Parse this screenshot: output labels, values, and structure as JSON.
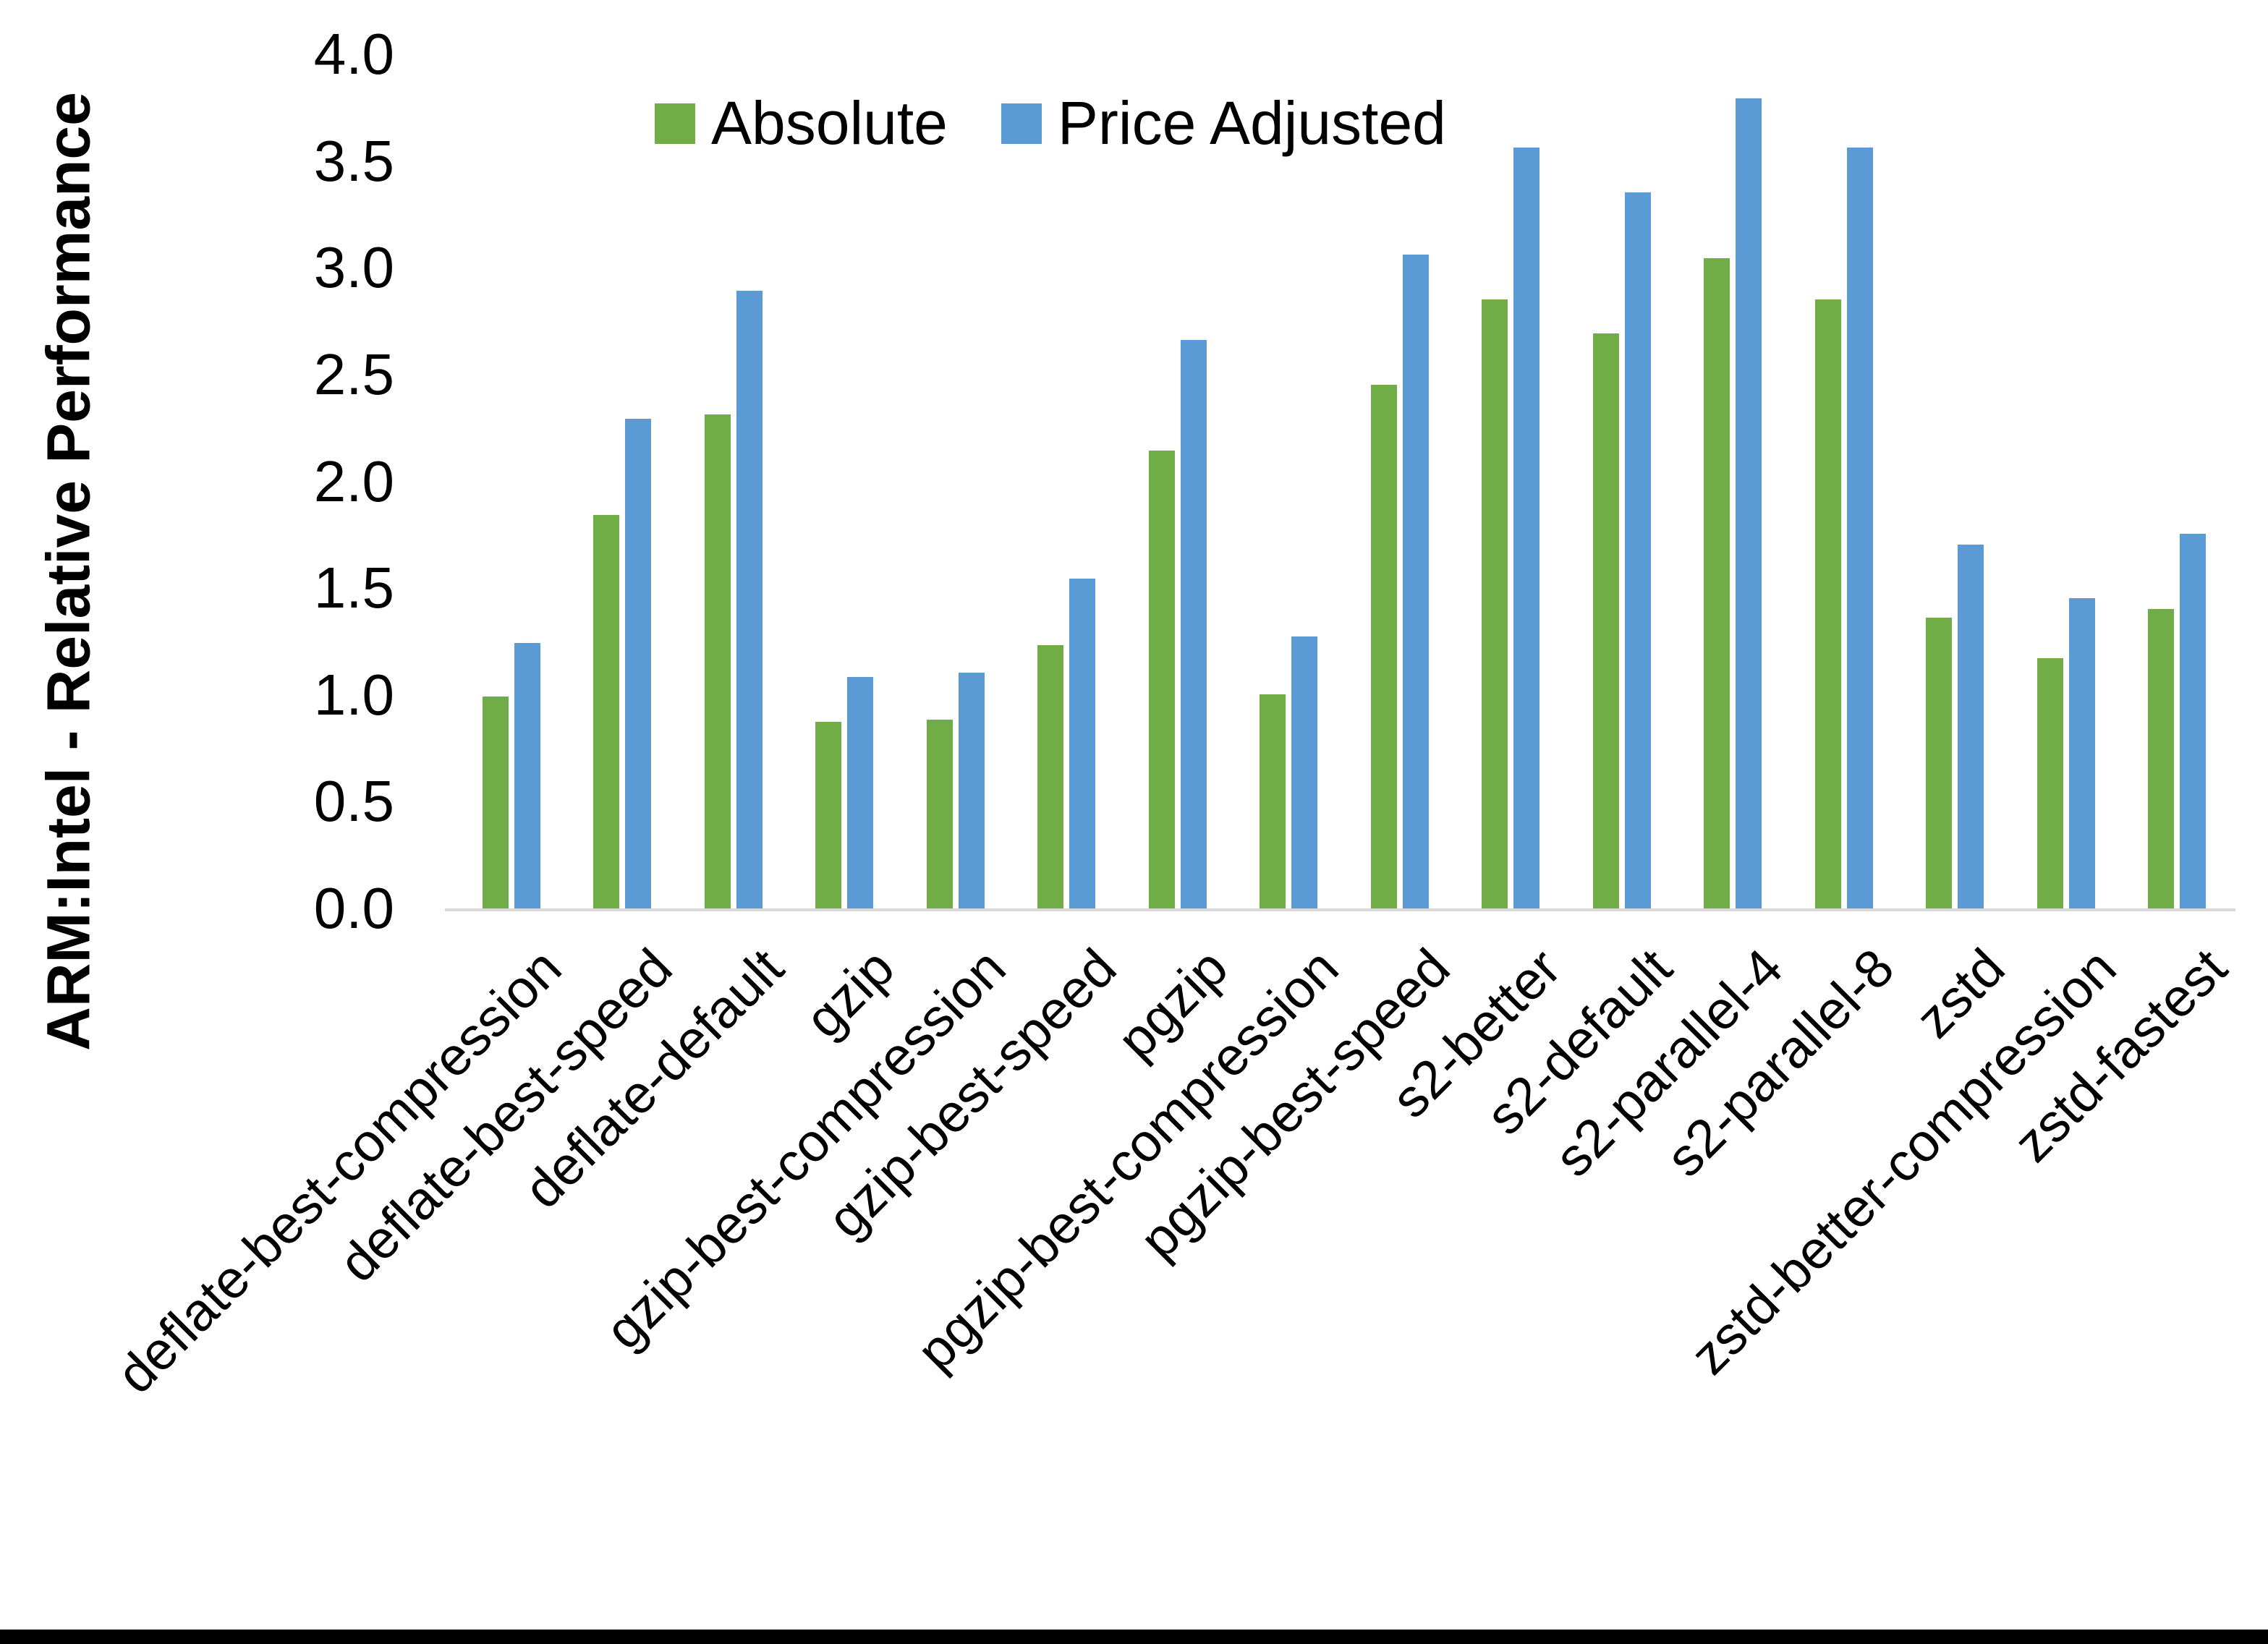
{
  "chart_data": {
    "type": "bar",
    "title": "",
    "ylabel": "ARM:Intel - Relative Performance",
    "xlabel": "",
    "ylim": [
      0.0,
      4.0
    ],
    "ytick_step": 0.5,
    "ytick_labels": [
      "0.0",
      "0.5",
      "1.0",
      "1.5",
      "2.0",
      "2.5",
      "3.0",
      "3.5",
      "4.0"
    ],
    "grid": false,
    "legend_position": "top-center",
    "axis_line_color": "#D9D9D9",
    "text_color": "#000000",
    "categories": [
      "deflate-best-compression",
      "deflate-best-speed",
      "deflate-default",
      "gzip",
      "gzip-best-compression",
      "gzip-best-speed",
      "pgzip",
      "pgzip-best-compression",
      "pgzip-best-speed",
      "s2-better",
      "s2-default",
      "s2-parallel-4",
      "s2-parallel-8",
      "zstd",
      "zstd-better-compression",
      "zstd-fastest"
    ],
    "series": [
      {
        "name": "Absolute",
        "color": "#70AD47",
        "values": [
          1.0,
          1.85,
          2.32,
          0.88,
          0.89,
          1.24,
          2.15,
          1.01,
          2.46,
          2.86,
          2.7,
          3.05,
          2.86,
          1.37,
          1.18,
          1.41
        ]
      },
      {
        "name": "Price Adjusted",
        "color": "#5B9BD5",
        "values": [
          1.25,
          2.3,
          2.9,
          1.09,
          1.11,
          1.55,
          2.67,
          1.28,
          3.07,
          3.57,
          3.36,
          3.8,
          3.57,
          1.71,
          1.46,
          1.76
        ]
      }
    ]
  }
}
